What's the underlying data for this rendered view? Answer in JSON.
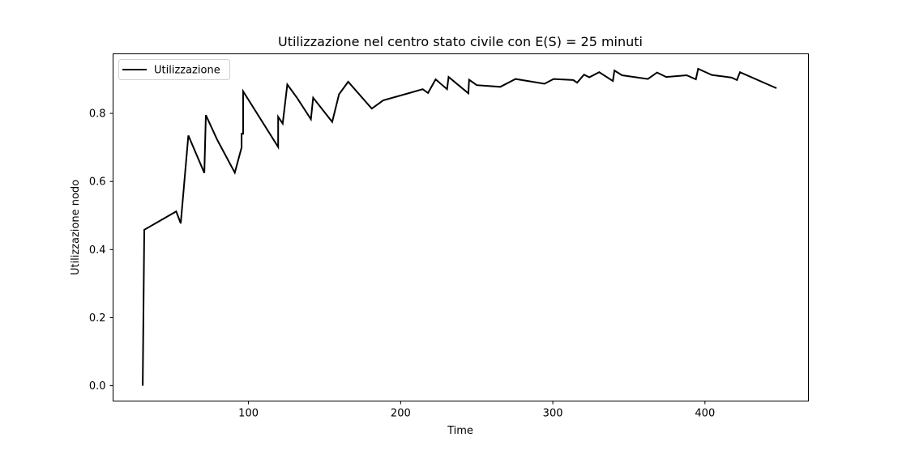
{
  "chart_data": {
    "type": "line",
    "title": "Utilizzazione nel centro stato civile con E(S) = 25 minuti",
    "xlabel": "Time",
    "ylabel": "Utilizzazione nodo",
    "xlim": [
      11,
      468
    ],
    "ylim": [
      -0.045,
      0.975
    ],
    "xticks": [
      100,
      200,
      300,
      400
    ],
    "xtick_labels": [
      "100",
      "200",
      "300",
      "400"
    ],
    "yticks": [
      0.0,
      0.2,
      0.4,
      0.6,
      0.8
    ],
    "ytick_labels": [
      "0.0",
      "0.2",
      "0.4",
      "0.6",
      "0.8"
    ],
    "grid": false,
    "legend": "top-left",
    "series": [
      {
        "name": "Utilizzazione",
        "color": "#000000",
        "x": [
          30.5,
          31.5,
          52.5,
          55.5,
          60.5,
          71.0,
          72.0,
          79.5,
          91.0,
          95.5,
          95.5,
          96.5,
          96.5,
          119.5,
          119.5,
          122.5,
          125.5,
          132.0,
          141.0,
          142.5,
          155.0,
          159.5,
          165.5,
          181.0,
          188.5,
          214.5,
          218.0,
          223.0,
          230.5,
          231.5,
          244.5,
          245.0,
          250.0,
          265.5,
          275.5,
          294.5,
          300.5,
          313.5,
          316.0,
          320.5,
          324.0,
          330.5,
          339.5,
          340.5,
          345.5,
          362.5,
          368.5,
          374.5,
          388.0,
          394.0,
          395.5,
          404.5,
          417.5,
          421.0,
          423.0,
          447.0
        ],
        "y": [
          0.0,
          0.458,
          0.512,
          0.477,
          0.735,
          0.625,
          0.795,
          0.722,
          0.626,
          0.7,
          0.74,
          0.74,
          0.865,
          0.701,
          0.79,
          0.77,
          0.885,
          0.845,
          0.783,
          0.846,
          0.775,
          0.856,
          0.893,
          0.814,
          0.838,
          0.871,
          0.86,
          0.9,
          0.871,
          0.907,
          0.859,
          0.899,
          0.883,
          0.878,
          0.901,
          0.887,
          0.901,
          0.898,
          0.89,
          0.914,
          0.906,
          0.921,
          0.895,
          0.926,
          0.912,
          0.901,
          0.92,
          0.907,
          0.912,
          0.9,
          0.931,
          0.913,
          0.905,
          0.898,
          0.921,
          0.874
        ]
      }
    ]
  }
}
